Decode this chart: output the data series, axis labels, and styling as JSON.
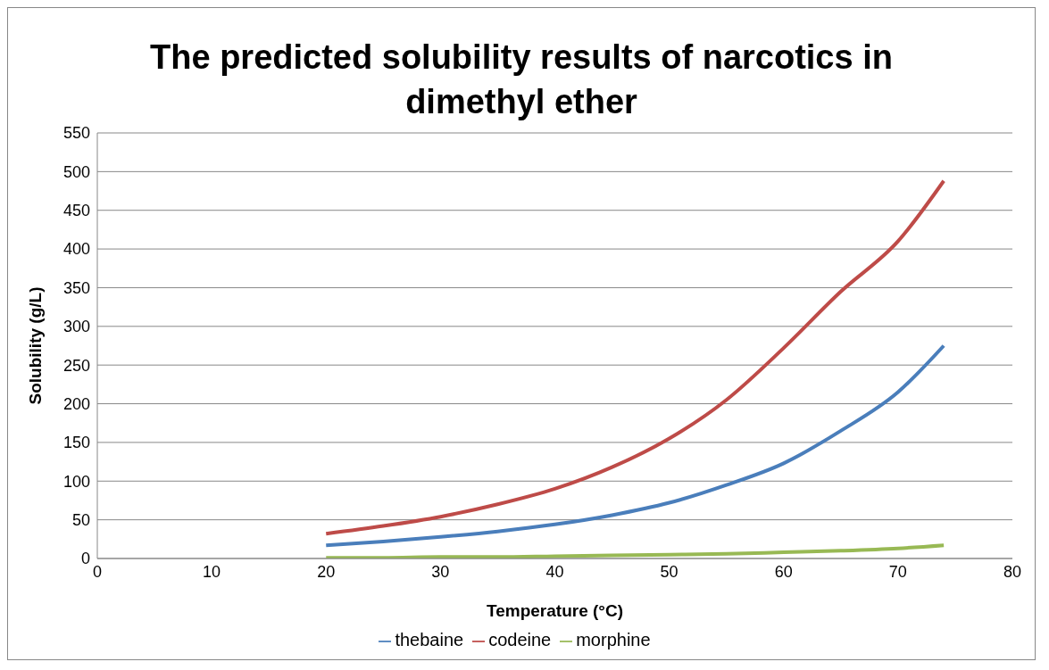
{
  "chart_data": {
    "type": "line",
    "title": "The predicted solubility results of narcotics in dimethyl ether",
    "xlabel": "Temperature (°C)",
    "ylabel": "Solubility (g/L)",
    "xlim": [
      0,
      80
    ],
    "xticks": [
      0,
      10,
      20,
      30,
      40,
      50,
      60,
      70,
      80
    ],
    "ylim": [
      0,
      550
    ],
    "yticks": [
      0,
      50,
      100,
      150,
      200,
      250,
      300,
      350,
      400,
      450,
      500,
      550
    ],
    "grid": "y",
    "legend": "bottom",
    "marker": "none",
    "line_style": "solid",
    "series": [
      {
        "name": "thebaine",
        "color": "#4a7ebb",
        "x": [
          20,
          25,
          30,
          35,
          40,
          45,
          50,
          55,
          60,
          65,
          70,
          74
        ],
        "values": [
          17,
          22,
          28,
          35,
          44,
          56,
          72,
          95,
          123,
          165,
          215,
          275
        ]
      },
      {
        "name": "codeine",
        "color": "#be4b48",
        "x": [
          20,
          25,
          30,
          35,
          40,
          45,
          50,
          55,
          60,
          65,
          70,
          74
        ],
        "values": [
          32,
          42,
          54,
          70,
          90,
          118,
          155,
          205,
          272,
          345,
          410,
          488
        ]
      },
      {
        "name": "morphine",
        "color": "#98b954",
        "x": [
          20,
          25,
          30,
          35,
          40,
          45,
          50,
          55,
          60,
          65,
          70,
          74
        ],
        "values": [
          1,
          1,
          2,
          2,
          3,
          4,
          5,
          6,
          8,
          10,
          13,
          17
        ]
      }
    ]
  }
}
